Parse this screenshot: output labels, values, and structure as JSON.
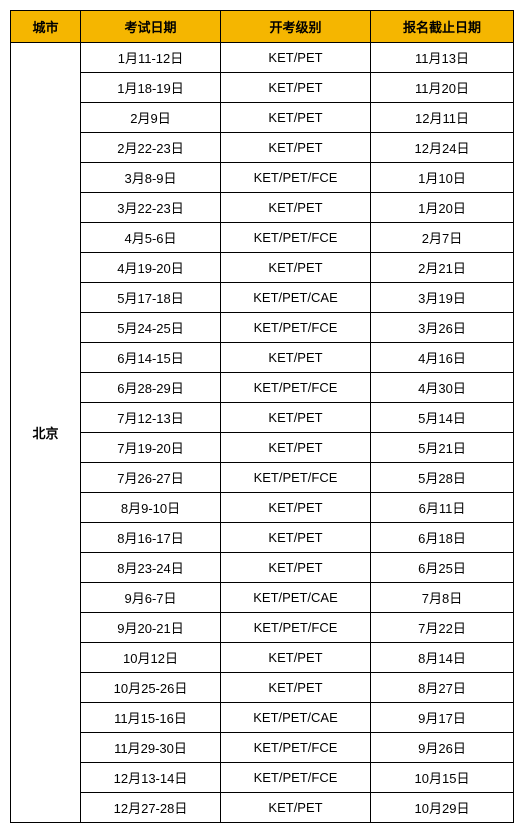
{
  "colors": {
    "header_bg": "#f5b600",
    "border": "#000000",
    "text": "#000000",
    "background": "#ffffff"
  },
  "columns": {
    "city": "城市",
    "exam_date": "考试日期",
    "level": "开考级别",
    "deadline": "报名截止日期"
  },
  "city_label": "北京",
  "rows": [
    {
      "exam_date": "1月11-12日",
      "level": "KET/PET",
      "deadline": "11月13日"
    },
    {
      "exam_date": "1月18-19日",
      "level": "KET/PET",
      "deadline": "11月20日"
    },
    {
      "exam_date": "2月9日",
      "level": "KET/PET",
      "deadline": "12月11日"
    },
    {
      "exam_date": "2月22-23日",
      "level": "KET/PET",
      "deadline": "12月24日"
    },
    {
      "exam_date": "3月8-9日",
      "level": "KET/PET/FCE",
      "deadline": "1月10日"
    },
    {
      "exam_date": "3月22-23日",
      "level": "KET/PET",
      "deadline": "1月20日"
    },
    {
      "exam_date": "4月5-6日",
      "level": "KET/PET/FCE",
      "deadline": "2月7日"
    },
    {
      "exam_date": "4月19-20日",
      "level": "KET/PET",
      "deadline": "2月21日"
    },
    {
      "exam_date": "5月17-18日",
      "level": "KET/PET/CAE",
      "deadline": "3月19日"
    },
    {
      "exam_date": "5月24-25日",
      "level": "KET/PET/FCE",
      "deadline": "3月26日"
    },
    {
      "exam_date": "6月14-15日",
      "level": "KET/PET",
      "deadline": "4月16日"
    },
    {
      "exam_date": "6月28-29日",
      "level": "KET/PET/FCE",
      "deadline": "4月30日"
    },
    {
      "exam_date": "7月12-13日",
      "level": "KET/PET",
      "deadline": "5月14日"
    },
    {
      "exam_date": "7月19-20日",
      "level": "KET/PET",
      "deadline": "5月21日"
    },
    {
      "exam_date": "7月26-27日",
      "level": "KET/PET/FCE",
      "deadline": "5月28日"
    },
    {
      "exam_date": "8月9-10日",
      "level": "KET/PET",
      "deadline": "6月11日"
    },
    {
      "exam_date": "8月16-17日",
      "level": "KET/PET",
      "deadline": "6月18日"
    },
    {
      "exam_date": "8月23-24日",
      "level": "KET/PET",
      "deadline": "6月25日"
    },
    {
      "exam_date": "9月6-7日",
      "level": "KET/PET/CAE",
      "deadline": "7月8日"
    },
    {
      "exam_date": "9月20-21日",
      "level": "KET/PET/FCE",
      "deadline": "7月22日"
    },
    {
      "exam_date": "10月12日",
      "level": "KET/PET",
      "deadline": "8月14日"
    },
    {
      "exam_date": "10月25-26日",
      "level": "KET/PET",
      "deadline": "8月27日"
    },
    {
      "exam_date": "11月15-16日",
      "level": "KET/PET/CAE",
      "deadline": "9月17日"
    },
    {
      "exam_date": "11月29-30日",
      "level": "KET/PET/FCE",
      "deadline": "9月26日"
    },
    {
      "exam_date": "12月13-14日",
      "level": "KET/PET/FCE",
      "deadline": "10月15日"
    },
    {
      "exam_date": "12月27-28日",
      "level": "KET/PET",
      "deadline": "10月29日"
    }
  ]
}
